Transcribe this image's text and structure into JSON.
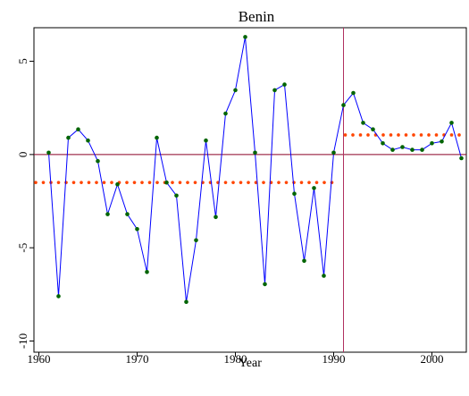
{
  "chart_data": {
    "type": "line",
    "title": "Benin",
    "xlabel": "Year",
    "ylabel": "",
    "xlim": [
      1959.5,
      2003.5
    ],
    "ylim": [
      -10.6,
      6.8
    ],
    "xticks": [
      1960,
      1970,
      1980,
      1990,
      2000
    ],
    "xtick_labels": [
      "1960",
      "1970",
      "1980",
      "1990",
      "2000"
    ],
    "yticks": [
      5,
      0,
      -5,
      -10
    ],
    "ytick_labels": [
      "5",
      "0",
      "-5",
      "-10"
    ],
    "grid": false,
    "legend": "none",
    "x": [
      1961,
      1962,
      1963,
      1964,
      1965,
      1966,
      1967,
      1968,
      1969,
      1970,
      1971,
      1972,
      1973,
      1974,
      1975,
      1976,
      1977,
      1978,
      1979,
      1980,
      1981,
      1982,
      1983,
      1984,
      1985,
      1986,
      1987,
      1988,
      1989,
      1990,
      1991,
      1992,
      1993,
      1994,
      1995,
      1996,
      1997,
      1998,
      1999,
      2000,
      2001,
      2002,
      2003
    ],
    "series": [
      {
        "values": [
          0.1,
          -7.6,
          0.9,
          1.35,
          0.75,
          -0.35,
          -3.2,
          -1.6,
          -3.2,
          -4.0,
          -6.3,
          0.9,
          -1.5,
          -2.2,
          -7.9,
          -4.6,
          0.75,
          -3.35,
          2.2,
          3.45,
          6.3,
          0.1,
          -6.95,
          3.45,
          3.75,
          -2.1,
          -5.7,
          -1.8,
          -6.5,
          0.1,
          2.65,
          3.3,
          1.7,
          1.35,
          0.6,
          0.25,
          0.4,
          0.25,
          0.25,
          0.6,
          0.7,
          1.7,
          -0.2
        ],
        "line_color": "#0000ff",
        "marker_color": "#006400"
      },
      {
        "type": "step-mean",
        "segments": [
          {
            "x_start": 1959.5,
            "x_end": 1990.0,
            "value": -1.5
          },
          {
            "x_start": 1991.0,
            "x_end": 2003.5,
            "value": 1.05
          }
        ],
        "color": "#ff4500"
      }
    ],
    "reference_lines": {
      "horizontal": {
        "value": 0,
        "color": "#8b0026"
      },
      "vertical": {
        "value": 1991,
        "color": "#b03060"
      }
    }
  }
}
